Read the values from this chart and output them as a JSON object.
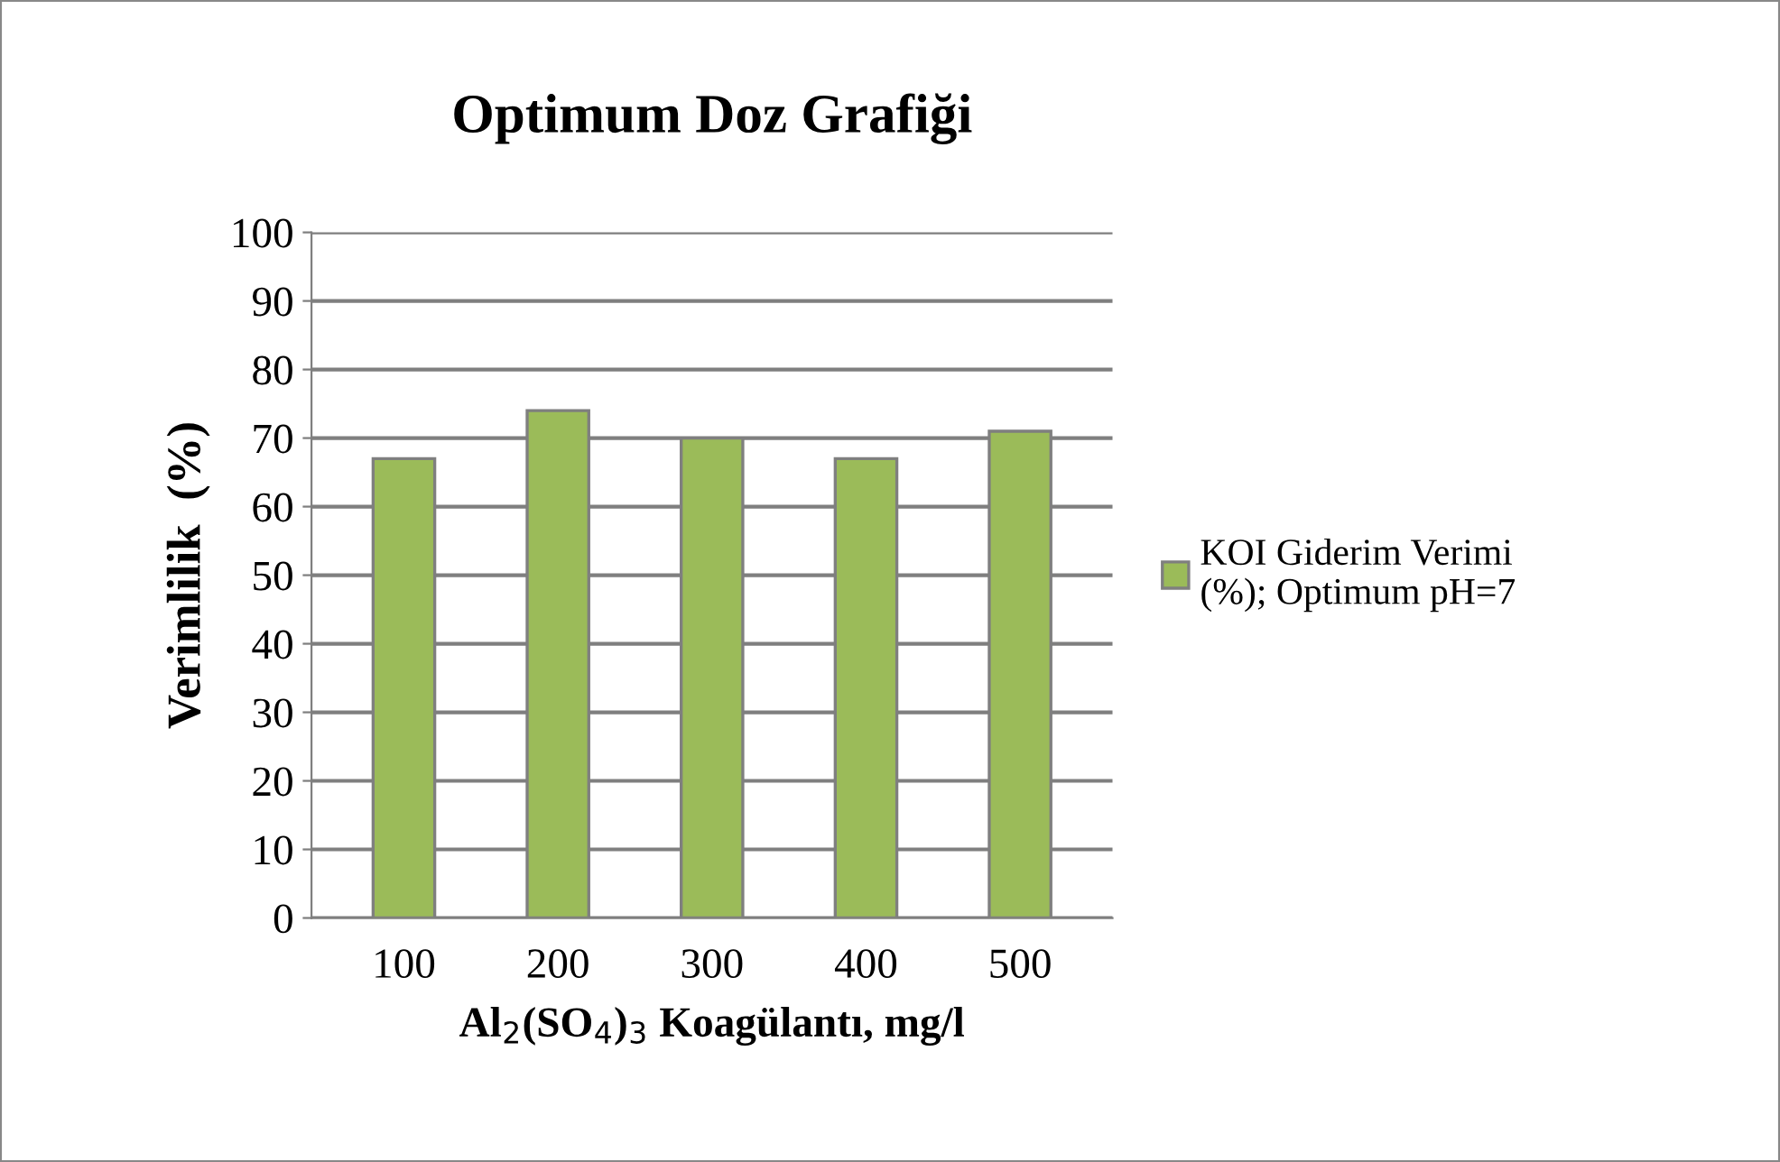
{
  "chart_data": {
    "type": "bar",
    "title": "Optimum Doz Grafiği",
    "xlabel": "Al$_{2}$(SO$_{4}$)$_{3}$ Koagülantı, mg/l",
    "ylabel": "Verimlilik  (%)",
    "categories": [
      "100",
      "200",
      "300",
      "400",
      "500"
    ],
    "series": [
      {
        "name": "KOI Giderim Verimi\n(%); Optimum pH=7",
        "color": "#9bbb59",
        "values": [
          67,
          74,
          70,
          67,
          71
        ]
      }
    ],
    "ylim": [
      0,
      100
    ],
    "yticks": [
      0,
      10,
      20,
      30,
      40,
      50,
      60,
      70,
      80,
      90,
      100
    ],
    "grid": "y",
    "legend": "right"
  }
}
